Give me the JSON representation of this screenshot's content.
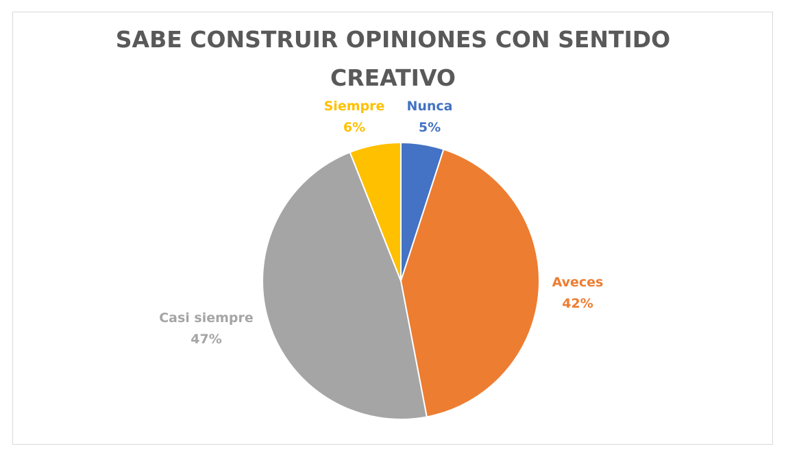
{
  "chart_data": {
    "type": "pie",
    "title": "SABE CONSTRUIR OPINIONES CON SENTIDO CREATIVO",
    "title_lines": [
      "SABE CONSTRUIR OPINIONES CON SENTIDO",
      "CREATIVO"
    ],
    "legend": "none",
    "slices": [
      {
        "name": "Nunca",
        "value": 5,
        "label": "5%",
        "color": "#4472C4"
      },
      {
        "name": "Aveces",
        "value": 42,
        "label": "42%",
        "color": "#ED7D31"
      },
      {
        "name": "Casi siempre",
        "value": 47,
        "label": "47%",
        "color": "#A5A5A5"
      },
      {
        "name": "Siempre",
        "value": 6,
        "label": "6%",
        "color": "#FFC000"
      }
    ]
  }
}
